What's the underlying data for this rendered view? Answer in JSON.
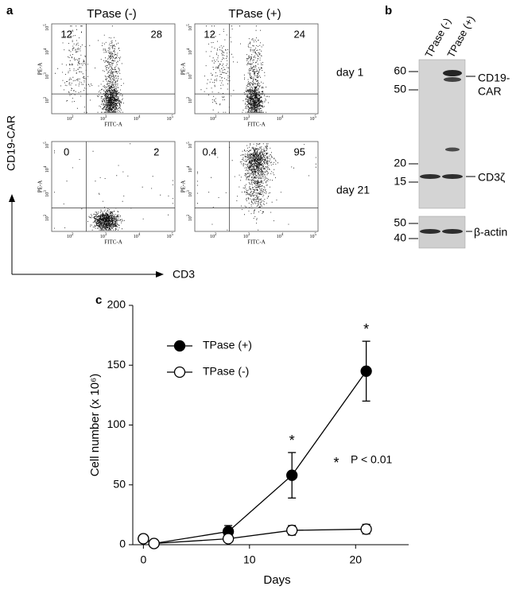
{
  "flow": {
    "label": "a",
    "columns": [
      "TPase (-)",
      "TPase (+)"
    ],
    "rows": [
      "day 1",
      "day 21"
    ],
    "y_label": "CD19-CAR",
    "x_label": "CD3",
    "plot_y_axis": "PE-A",
    "plot_x_axis": "FITC-A",
    "log_base": "10",
    "x_log_ticks": [
      2,
      3,
      4,
      5
    ],
    "y_log_ticks": [
      2,
      3,
      4,
      5
    ],
    "quadrants": [
      [
        [
          12,
          28
        ],
        [
          12,
          24
        ]
      ],
      [
        [
          0,
          2
        ],
        [
          0.4,
          95
        ]
      ]
    ]
  },
  "blot": {
    "label": "b",
    "lanes": [
      "TPase (-)",
      "TPase (+)"
    ],
    "main_markers": [
      60,
      50,
      20,
      15
    ],
    "actin_markers": [
      50,
      40
    ],
    "car_label": [
      "CD19-",
      "CAR"
    ],
    "cd3_label": "CD3ζ",
    "actin_label": "β-actin"
  },
  "chart_data": {
    "type": "line",
    "label": "c",
    "x_label": "Days",
    "y_label": "Cell number (x 10⁶)",
    "x": [
      0,
      1,
      8,
      14,
      21
    ],
    "series": [
      {
        "name": "TPase (+)",
        "color": "#000000",
        "marker_fill": "#000000",
        "values": [
          5,
          1,
          11,
          58,
          145
        ],
        "errors": [
          null,
          null,
          5,
          19,
          25
        ]
      },
      {
        "name": "TPase (-)",
        "color": "#000000",
        "marker_fill": "#ffffff",
        "values": [
          5,
          1,
          5,
          12,
          13
        ],
        "errors": [
          null,
          null,
          null,
          4,
          4
        ]
      }
    ],
    "xlim": [
      -1,
      25
    ],
    "xticks": [
      0,
      10,
      20
    ],
    "ylim": [
      0,
      200
    ],
    "yticks": [
      0,
      50,
      100,
      150,
      200
    ],
    "significance_marker": "*",
    "significant_points": [
      3,
      4
    ],
    "annotation": "P < 0.01",
    "legend": "upper left",
    "grid": false
  }
}
